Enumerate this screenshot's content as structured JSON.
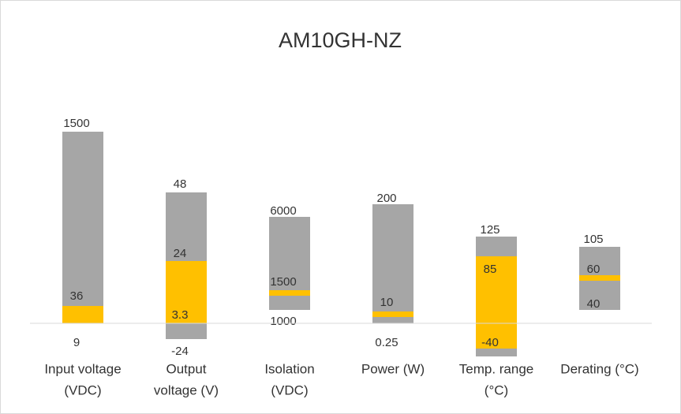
{
  "chart_data": {
    "type": "range",
    "title": "AM10GH-NZ",
    "categories": [
      [
        "Input voltage",
        "(VDC)"
      ],
      [
        "Output",
        "voltage (V)"
      ],
      [
        "Isolation",
        "(VDC)"
      ],
      [
        "Power (W)"
      ],
      [
        "Temp. range",
        "(°C)"
      ],
      [
        "Derating (°C)"
      ]
    ],
    "min": [
      9,
      -24,
      1000,
      0.25,
      -40,
      40
    ],
    "max": [
      1500,
      48,
      6000,
      200,
      125,
      105
    ],
    "band_low": [
      null,
      3.3,
      null,
      null,
      null,
      null
    ],
    "band_high": [
      36,
      24,
      1500,
      10,
      85,
      60
    ],
    "range_color": "#a6a6a6",
    "band_color": "#ffc000"
  }
}
